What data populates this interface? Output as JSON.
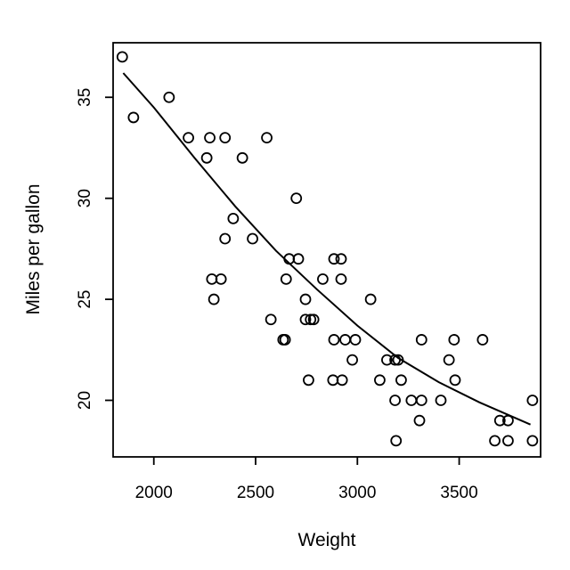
{
  "chart_data": {
    "type": "scatter",
    "xlabel": "Weight",
    "ylabel": "Miles per gallon",
    "xlim": [
      1800,
      3900
    ],
    "ylim": [
      17.2,
      37.7
    ],
    "xticks": [
      2000,
      2500,
      3000,
      3500
    ],
    "yticks": [
      20,
      25,
      30,
      35
    ],
    "grid": false,
    "marker": "open-circle",
    "points": [
      [
        1845,
        37
      ],
      [
        1900,
        34
      ],
      [
        2075,
        35
      ],
      [
        2170,
        33
      ],
      [
        2260,
        32
      ],
      [
        2275,
        33
      ],
      [
        2350,
        33
      ],
      [
        2555,
        33
      ],
      [
        2435,
        32
      ],
      [
        2700,
        30
      ],
      [
        2390,
        29
      ],
      [
        2350,
        28
      ],
      [
        2485,
        28
      ],
      [
        2665,
        27
      ],
      [
        2710,
        27
      ],
      [
        2885,
        27
      ],
      [
        2920,
        27
      ],
      [
        2285,
        26
      ],
      [
        2330,
        26
      ],
      [
        2650,
        26
      ],
      [
        2830,
        26
      ],
      [
        2920,
        26
      ],
      [
        2295,
        25
      ],
      [
        2745,
        25
      ],
      [
        3065,
        25
      ],
      [
        2575,
        24
      ],
      [
        2745,
        24
      ],
      [
        2770,
        24
      ],
      [
        2785,
        24
      ],
      [
        2635,
        23
      ],
      [
        2645,
        23
      ],
      [
        2885,
        23
      ],
      [
        2940,
        23
      ],
      [
        2990,
        23
      ],
      [
        3315,
        23
      ],
      [
        3475,
        23
      ],
      [
        3615,
        23
      ],
      [
        2975,
        22
      ],
      [
        3145,
        22
      ],
      [
        3185,
        22
      ],
      [
        3200,
        22
      ],
      [
        3450,
        22
      ],
      [
        2760,
        21
      ],
      [
        2880,
        21
      ],
      [
        2925,
        21
      ],
      [
        3110,
        21
      ],
      [
        3215,
        21
      ],
      [
        3480,
        21
      ],
      [
        3185,
        20
      ],
      [
        3265,
        20
      ],
      [
        3315,
        20
      ],
      [
        3410,
        20
      ],
      [
        3860,
        20
      ],
      [
        3305,
        19
      ],
      [
        3700,
        19
      ],
      [
        3740,
        19
      ],
      [
        3190,
        18
      ],
      [
        3675,
        18
      ],
      [
        3740,
        18
      ],
      [
        3860,
        18
      ]
    ],
    "trend": [
      [
        1850,
        36.2
      ],
      [
        2000,
        34.5
      ],
      [
        2200,
        32.0
      ],
      [
        2400,
        29.6
      ],
      [
        2600,
        27.4
      ],
      [
        2800,
        25.5
      ],
      [
        3000,
        23.7
      ],
      [
        3200,
        22.1
      ],
      [
        3400,
        20.9
      ],
      [
        3600,
        19.9
      ],
      [
        3850,
        18.8
      ]
    ]
  }
}
